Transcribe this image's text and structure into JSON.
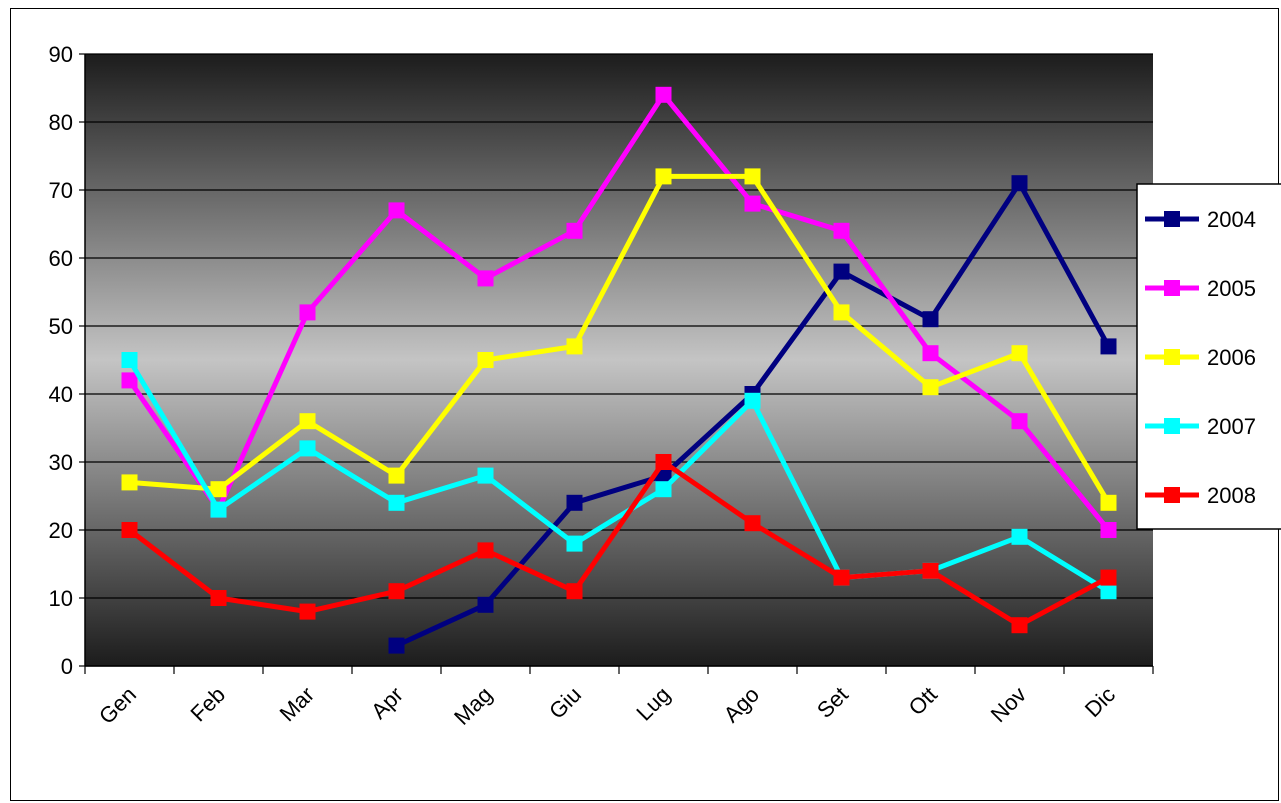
{
  "chart_data": {
    "type": "line",
    "title": "",
    "xlabel": "",
    "ylabel": "",
    "categories": [
      "Gen",
      "Feb",
      "Mar",
      "Apr",
      "Mag",
      "Giu",
      "Lug",
      "Ago",
      "Set",
      "Ott",
      "Nov",
      "Dic"
    ],
    "ylim": [
      0,
      90
    ],
    "yticks": [
      0,
      10,
      20,
      30,
      40,
      50,
      60,
      70,
      80,
      90
    ],
    "grid": true,
    "legend_position": "right",
    "series": [
      {
        "name": "2004",
        "color": "#000080",
        "values": [
          null,
          null,
          null,
          3,
          9,
          24,
          28,
          40,
          58,
          51,
          71,
          47
        ]
      },
      {
        "name": "2005",
        "color": "#ff00ff",
        "values": [
          42,
          23,
          52,
          67,
          57,
          64,
          84,
          68,
          64,
          46,
          36,
          20
        ]
      },
      {
        "name": "2006",
        "color": "#ffff00",
        "values": [
          27,
          26,
          36,
          28,
          45,
          47,
          72,
          72,
          52,
          41,
          46,
          24
        ]
      },
      {
        "name": "2007",
        "color": "#00ffff",
        "values": [
          45,
          23,
          32,
          24,
          28,
          18,
          26,
          39,
          13,
          14,
          19,
          11
        ]
      },
      {
        "name": "2008",
        "color": "#ff0000",
        "values": [
          20,
          10,
          8,
          11,
          17,
          11,
          30,
          21,
          13,
          14,
          6,
          13
        ]
      }
    ]
  }
}
